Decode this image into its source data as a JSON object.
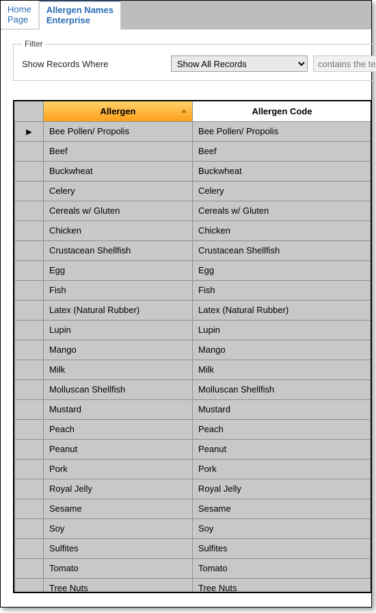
{
  "tabs": {
    "home": {
      "line1": "Home",
      "line2": "Page"
    },
    "allergen": {
      "line1": "Allergen Names",
      "line2": "Enterprise"
    }
  },
  "filter": {
    "legend": "Filter",
    "label": "Show Records Where",
    "selected_option": "Show All Records",
    "options": [
      "Show All Records"
    ],
    "contains_placeholder": "contains the te"
  },
  "grid": {
    "columns": [
      "Allergen",
      "Allergen Code"
    ],
    "sorted_column_index": 0,
    "sorted_header_bg": "linear-gradient(#ffd26a,#ff9f1a)",
    "header_bg": "#ffffff",
    "cell_bg": "#c8c8c8",
    "border_color": "#8f8f8f",
    "row_indicator_glyph": "▶",
    "rows": [
      {
        "indicator": true,
        "allergen": "Bee Pollen/ Propolis",
        "code": "Bee Pollen/ Propolis"
      },
      {
        "indicator": false,
        "allergen": "Beef",
        "code": "Beef"
      },
      {
        "indicator": false,
        "allergen": "Buckwheat",
        "code": "Buckwheat"
      },
      {
        "indicator": false,
        "allergen": "Celery",
        "code": "Celery"
      },
      {
        "indicator": false,
        "allergen": "Cereals w/ Gluten",
        "code": "Cereals w/ Gluten"
      },
      {
        "indicator": false,
        "allergen": "Chicken",
        "code": "Chicken"
      },
      {
        "indicator": false,
        "allergen": "Crustacean Shellfish",
        "code": "Crustacean Shellfish"
      },
      {
        "indicator": false,
        "allergen": "Egg",
        "code": "Egg"
      },
      {
        "indicator": false,
        "allergen": "Fish",
        "code": "Fish"
      },
      {
        "indicator": false,
        "allergen": "Latex (Natural Rubber)",
        "code": "Latex (Natural Rubber)"
      },
      {
        "indicator": false,
        "allergen": "Lupin",
        "code": "Lupin"
      },
      {
        "indicator": false,
        "allergen": "Mango",
        "code": "Mango"
      },
      {
        "indicator": false,
        "allergen": "Milk",
        "code": "Milk"
      },
      {
        "indicator": false,
        "allergen": "Molluscan Shellfish",
        "code": "Molluscan Shellfish"
      },
      {
        "indicator": false,
        "allergen": "Mustard",
        "code": "Mustard"
      },
      {
        "indicator": false,
        "allergen": "Peach",
        "code": "Peach"
      },
      {
        "indicator": false,
        "allergen": "Peanut",
        "code": "Peanut"
      },
      {
        "indicator": false,
        "allergen": "Pork",
        "code": "Pork"
      },
      {
        "indicator": false,
        "allergen": "Royal Jelly",
        "code": "Royal Jelly"
      },
      {
        "indicator": false,
        "allergen": "Sesame",
        "code": "Sesame"
      },
      {
        "indicator": false,
        "allergen": "Soy",
        "code": "Soy"
      },
      {
        "indicator": false,
        "allergen": "Sulfites",
        "code": "Sulfites"
      },
      {
        "indicator": false,
        "allergen": "Tomato",
        "code": "Tomato"
      },
      {
        "indicator": false,
        "allergen": "Tree Nuts",
        "code": "Tree Nuts"
      }
    ]
  }
}
